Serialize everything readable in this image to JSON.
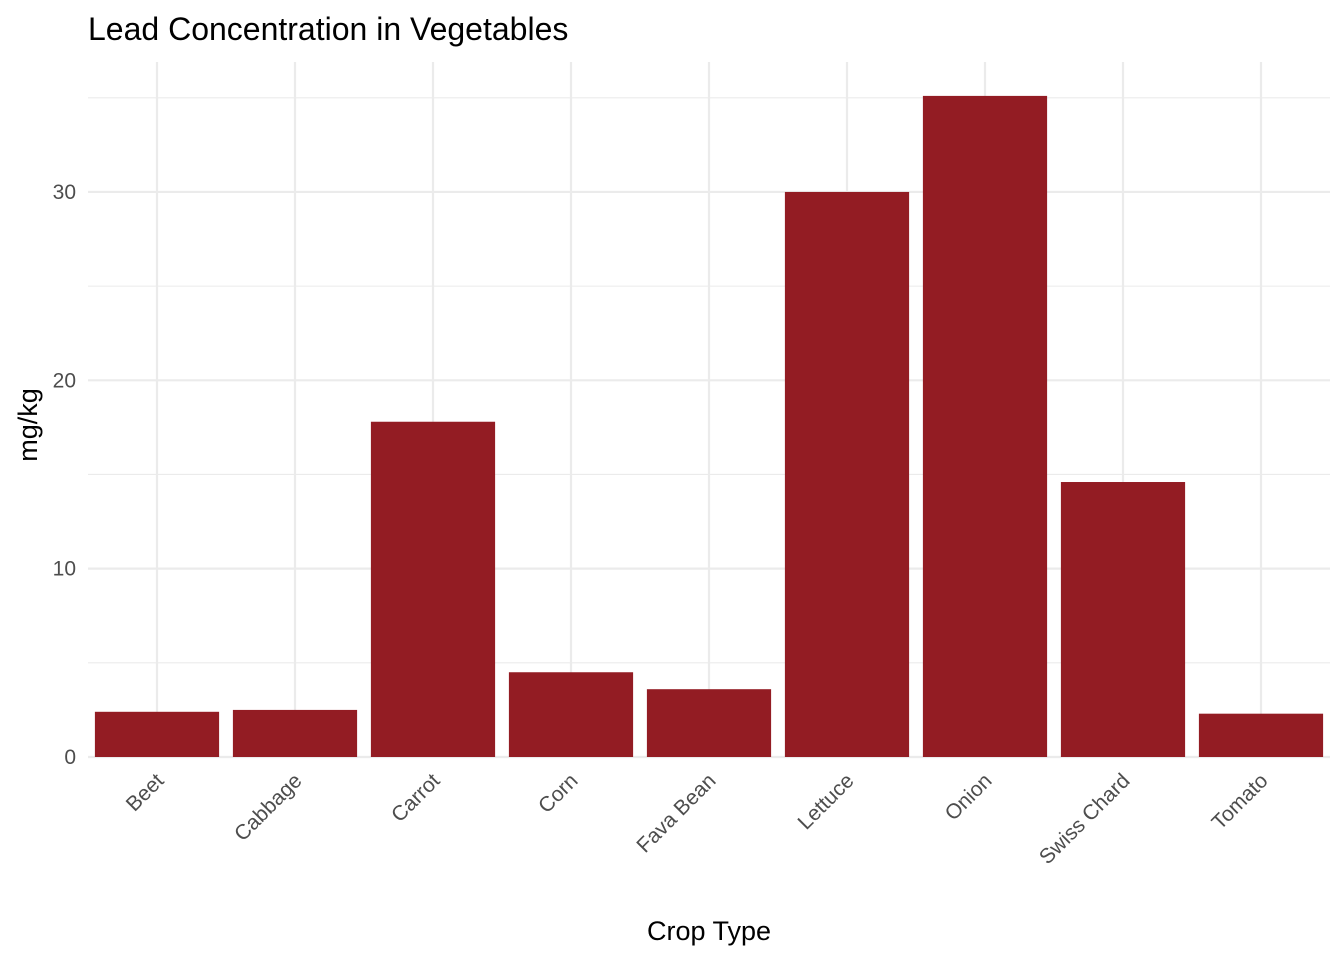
{
  "chart_data": {
    "type": "bar",
    "title": "Lead Concentration in Vegetables",
    "xlabel": "Crop Type",
    "ylabel": "mg/kg",
    "categories": [
      "Beet",
      "Cabbage",
      "Carrot",
      "Corn",
      "Fava Bean",
      "Lettuce",
      "Onion",
      "Swiss Chard",
      "Tomato"
    ],
    "values": [
      2.4,
      2.5,
      17.8,
      4.5,
      3.6,
      30.0,
      35.1,
      14.6,
      2.3
    ],
    "ylim": [
      0,
      36.9
    ],
    "yticks": [
      0,
      10,
      20,
      30
    ],
    "ytick_labels": [
      "0",
      "10",
      "20",
      "30"
    ],
    "bar_color": "#931c23",
    "grid": true,
    "legend": "none"
  }
}
